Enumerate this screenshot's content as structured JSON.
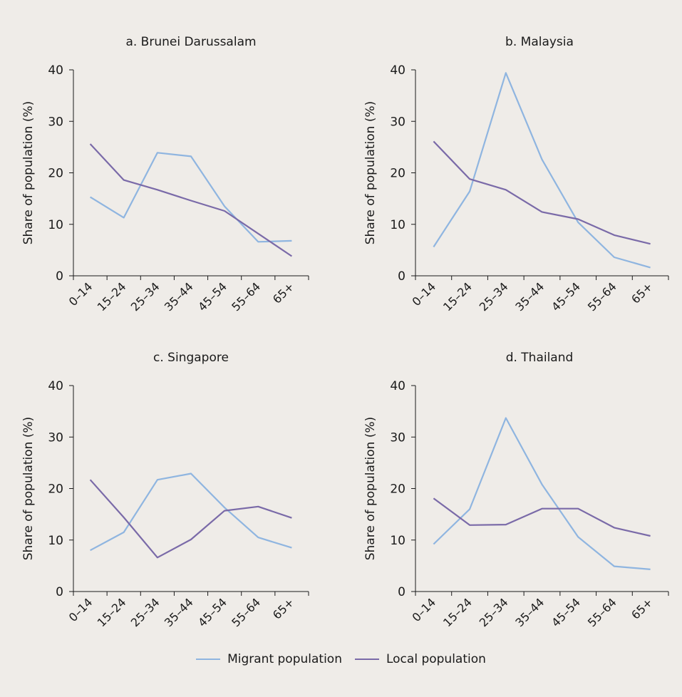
{
  "chart_data": [
    {
      "type": "line",
      "title": "a. Brunei Darussalam",
      "ylabel": "Share of population (%)",
      "categories": [
        "0–14",
        "15–24",
        "25–34",
        "35–44",
        "45–54",
        "55–64",
        "65+"
      ],
      "ylim": [
        0,
        40
      ],
      "yticks": [
        "0",
        "10",
        "20",
        "30",
        "40"
      ],
      "series": [
        {
          "name": "Migrant population",
          "values": [
            15.3,
            11.3,
            23.9,
            23.2,
            13.5,
            6.6,
            6.8
          ]
        },
        {
          "name": "Local population",
          "values": [
            25.6,
            18.6,
            16.7,
            14.6,
            12.6,
            8.2,
            3.8
          ]
        }
      ]
    },
    {
      "type": "line",
      "title": "b. Malaysia",
      "ylabel": "Share of population (%)",
      "categories": [
        "0–14",
        "15–24",
        "25–34",
        "35–44",
        "45–54",
        "55–64",
        "65+"
      ],
      "ylim": [
        0,
        40
      ],
      "yticks": [
        "0",
        "10",
        "20",
        "30",
        "40"
      ],
      "series": [
        {
          "name": "Migrant population",
          "values": [
            5.6,
            16.4,
            39.4,
            22.6,
            10.4,
            3.6,
            1.6
          ]
        },
        {
          "name": "Local population",
          "values": [
            26.1,
            18.8,
            16.7,
            12.4,
            11.0,
            7.9,
            6.2
          ]
        }
      ]
    },
    {
      "type": "line",
      "title": "c. Singapore",
      "ylabel": "Share of population (%)",
      "categories": [
        "0–14",
        "15–24",
        "25–34",
        "35–44",
        "45–54",
        "55–64",
        "65+"
      ],
      "ylim": [
        0,
        40
      ],
      "yticks": [
        "0",
        "10",
        "20",
        "30",
        "40"
      ],
      "series": [
        {
          "name": "Migrant population",
          "values": [
            8.0,
            11.5,
            21.7,
            22.9,
            16.3,
            10.5,
            8.5
          ]
        },
        {
          "name": "Local population",
          "values": [
            21.7,
            14.4,
            6.6,
            10.1,
            15.7,
            16.5,
            14.3
          ]
        }
      ]
    },
    {
      "type": "line",
      "title": "d. Thailand",
      "ylabel": "Share of population (%)",
      "categories": [
        "0–14",
        "15–24",
        "25–34",
        "35–44",
        "45–54",
        "55–64",
        "65+"
      ],
      "ylim": [
        0,
        40
      ],
      "yticks": [
        "0",
        "10",
        "20",
        "30",
        "40"
      ],
      "series": [
        {
          "name": "Migrant population",
          "values": [
            9.2,
            16.0,
            33.7,
            20.8,
            10.6,
            4.9,
            4.3
          ]
        },
        {
          "name": "Local population",
          "values": [
            18.1,
            12.9,
            13.0,
            16.1,
            16.1,
            12.4,
            10.8
          ]
        }
      ]
    }
  ],
  "legend": {
    "position": "bottom-center",
    "items": [
      {
        "label": "Migrant population",
        "color": "#8fb5e0"
      },
      {
        "label": "Local population",
        "color": "#7a6aa8"
      }
    ]
  },
  "colors": {
    "migrant": "#8fb5e0",
    "local": "#7a6aa8",
    "background": "#efece8"
  }
}
